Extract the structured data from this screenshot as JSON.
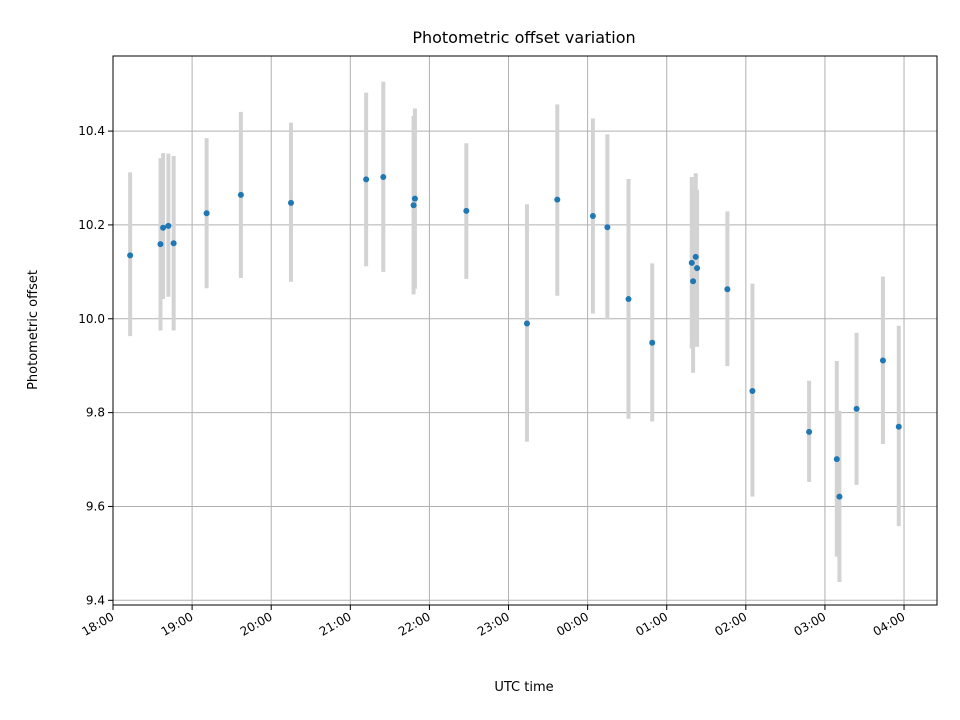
{
  "chart_data": {
    "type": "scatter",
    "title": "Photometric offset variation",
    "xlabel": "UTC time",
    "ylabel": "Photometric offset",
    "x_is_time": true,
    "xlim": [
      "18:00",
      "04:25"
    ],
    "ylim": [
      9.39,
      10.56
    ],
    "grid": true,
    "xticks": [
      "18:00",
      "19:00",
      "20:00",
      "21:00",
      "22:00",
      "23:00",
      "00:00",
      "01:00",
      "02:00",
      "03:00",
      "04:00"
    ],
    "yticks": [
      "9.4",
      "9.6",
      "9.8",
      "10.0",
      "10.2",
      "10.4"
    ],
    "point_color": "#1f77b4",
    "errorbar_color": "#d3d3d3",
    "points": [
      {
        "t": "18:13",
        "y": 10.135,
        "lo": 9.963,
        "hi": 10.312
      },
      {
        "t": "18:36",
        "y": 10.159,
        "lo": 9.975,
        "hi": 10.342
      },
      {
        "t": "18:38",
        "y": 10.194,
        "lo": 10.042,
        "hi": 10.353
      },
      {
        "t": "18:42",
        "y": 10.198,
        "lo": 10.047,
        "hi": 10.352
      },
      {
        "t": "18:46",
        "y": 10.161,
        "lo": 9.975,
        "hi": 10.347
      },
      {
        "t": "19:11",
        "y": 10.225,
        "lo": 10.065,
        "hi": 10.385
      },
      {
        "t": "19:37",
        "y": 10.264,
        "lo": 10.087,
        "hi": 10.441
      },
      {
        "t": "20:15",
        "y": 10.247,
        "lo": 10.079,
        "hi": 10.418
      },
      {
        "t": "21:12",
        "y": 10.297,
        "lo": 10.112,
        "hi": 10.482
      },
      {
        "t": "21:25",
        "y": 10.302,
        "lo": 10.1,
        "hi": 10.505
      },
      {
        "t": "21:48",
        "y": 10.242,
        "lo": 10.052,
        "hi": 10.432
      },
      {
        "t": "21:49",
        "y": 10.256,
        "lo": 10.064,
        "hi": 10.448
      },
      {
        "t": "22:28",
        "y": 10.23,
        "lo": 10.085,
        "hi": 10.374
      },
      {
        "t": "23:14",
        "y": 9.99,
        "lo": 9.738,
        "hi": 10.244
      },
      {
        "t": "23:37",
        "y": 10.254,
        "lo": 10.049,
        "hi": 10.457
      },
      {
        "t": "00:04",
        "y": 10.219,
        "lo": 10.011,
        "hi": 10.427
      },
      {
        "t": "00:15",
        "y": 10.195,
        "lo": 9.999,
        "hi": 10.393
      },
      {
        "t": "00:31",
        "y": 10.042,
        "lo": 9.787,
        "hi": 10.298
      },
      {
        "t": "00:49",
        "y": 9.949,
        "lo": 9.781,
        "hi": 10.118
      },
      {
        "t": "01:19",
        "y": 10.119,
        "lo": 9.937,
        "hi": 10.302
      },
      {
        "t": "01:20",
        "y": 10.08,
        "lo": 9.885,
        "hi": 10.275
      },
      {
        "t": "01:22",
        "y": 10.132,
        "lo": 9.959,
        "hi": 10.31
      },
      {
        "t": "01:23",
        "y": 10.108,
        "lo": 9.94,
        "hi": 10.275
      },
      {
        "t": "01:46",
        "y": 10.063,
        "lo": 9.899,
        "hi": 10.229
      },
      {
        "t": "02:05",
        "y": 9.846,
        "lo": 9.621,
        "hi": 10.075
      },
      {
        "t": "02:48",
        "y": 9.759,
        "lo": 9.652,
        "hi": 9.868
      },
      {
        "t": "03:09",
        "y": 9.701,
        "lo": 9.493,
        "hi": 9.91
      },
      {
        "t": "03:11",
        "y": 9.621,
        "lo": 9.439,
        "hi": 9.804
      },
      {
        "t": "03:24",
        "y": 9.808,
        "lo": 9.646,
        "hi": 9.97
      },
      {
        "t": "03:44",
        "y": 9.911,
        "lo": 9.733,
        "hi": 10.09
      },
      {
        "t": "03:56",
        "y": 9.77,
        "lo": 9.558,
        "hi": 9.985
      }
    ]
  }
}
